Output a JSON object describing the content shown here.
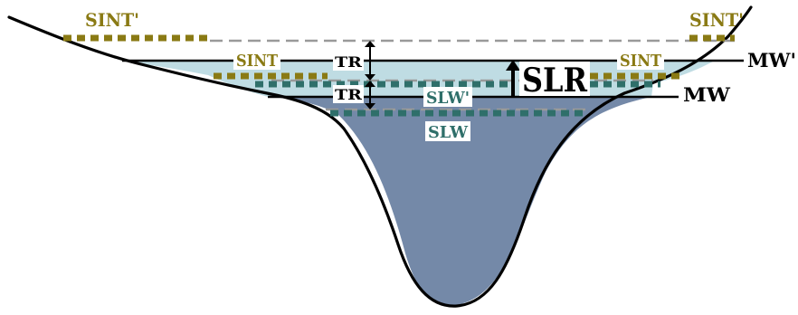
{
  "labels": {
    "sint_prime_left": "SINT'",
    "sint_prime_right": "SINT'",
    "sint_left": "SINT",
    "sint_right": "SINT",
    "slw_prime": "SLW'",
    "slw": "SLW",
    "tr_upper": "TR",
    "tr_lower": "TR",
    "slr": "SLR",
    "mw_prime": "MW'",
    "mw": "MW"
  },
  "colors": {
    "sint_gold": "#8a7a14",
    "slw_teal": "#2f6f6a",
    "deep_water": "#7489a8",
    "shallow_water": "#bfdce3",
    "dashed_gray": "#9a9a9a",
    "outline": "#000000"
  }
}
